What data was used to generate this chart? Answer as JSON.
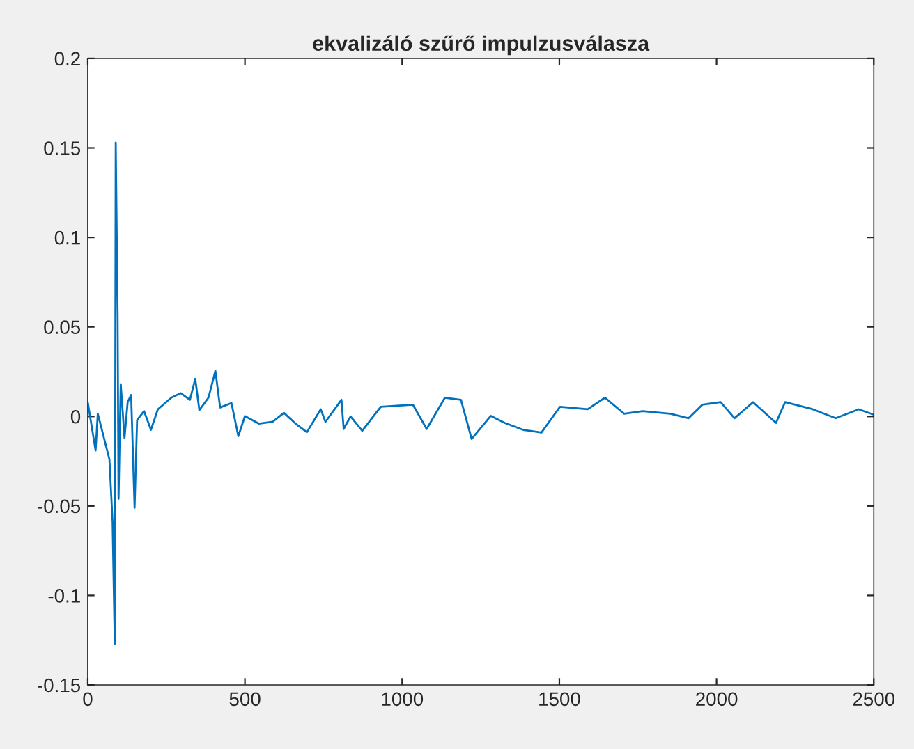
{
  "chart_data": {
    "type": "line",
    "title": "ekvalizáló szűrő impulzusválasza",
    "x": [
      0,
      25,
      32,
      69,
      79,
      86,
      89,
      95,
      98,
      105,
      117,
      127,
      138,
      149,
      157,
      179,
      201,
      223,
      266,
      296,
      325,
      342,
      355,
      384,
      406,
      421,
      457,
      479,
      500,
      544,
      588,
      624,
      661,
      697,
      741,
      756,
      807,
      814,
      836,
      873,
      932,
      1034,
      1078,
      1136,
      1187,
      1221,
      1282,
      1326,
      1385,
      1443,
      1502,
      1590,
      1645,
      1706,
      1765,
      1853,
      1911,
      1955,
      2013,
      2057,
      2116,
      2189,
      2218,
      2306,
      2379,
      2452,
      2500
    ],
    "series": [
      {
        "color": "#0072bd",
        "values": [
          0.008,
          -0.019,
          0.0015,
          -0.024,
          -0.059,
          -0.127,
          0.153,
          0.057,
          -0.046,
          0.018,
          -0.012,
          0.008,
          0.012,
          -0.051,
          -0.002,
          0.003,
          -0.0075,
          0.004,
          0.0105,
          0.013,
          0.0093,
          0.021,
          0.0035,
          0.0105,
          0.0254,
          0.005,
          0.0075,
          -0.011,
          0.0002,
          -0.004,
          -0.003,
          0.002,
          -0.004,
          -0.0088,
          0.004,
          -0.003,
          0.0093,
          -0.007,
          0.0,
          -0.008,
          0.0054,
          0.0066,
          -0.007,
          0.0105,
          0.0093,
          -0.0126,
          0.0003,
          -0.0036,
          -0.0075,
          -0.009,
          0.0054,
          0.004,
          0.0105,
          0.0015,
          0.003,
          0.0015,
          -0.001,
          0.0066,
          0.008,
          -0.001,
          0.008,
          -0.0036,
          0.008,
          0.004,
          -0.001,
          0.004,
          0.001
        ]
      }
    ],
    "xlim": [
      0,
      2500
    ],
    "xticks": [
      0,
      500,
      1000,
      1500,
      2000,
      2500
    ],
    "ylim": [
      -0.15,
      0.2
    ],
    "yticks": [
      -0.15,
      -0.1,
      -0.05,
      0,
      0.05,
      0.1,
      0.15,
      0.2
    ],
    "grid": false,
    "legend": false,
    "marker": "none",
    "line_style": "solid"
  }
}
